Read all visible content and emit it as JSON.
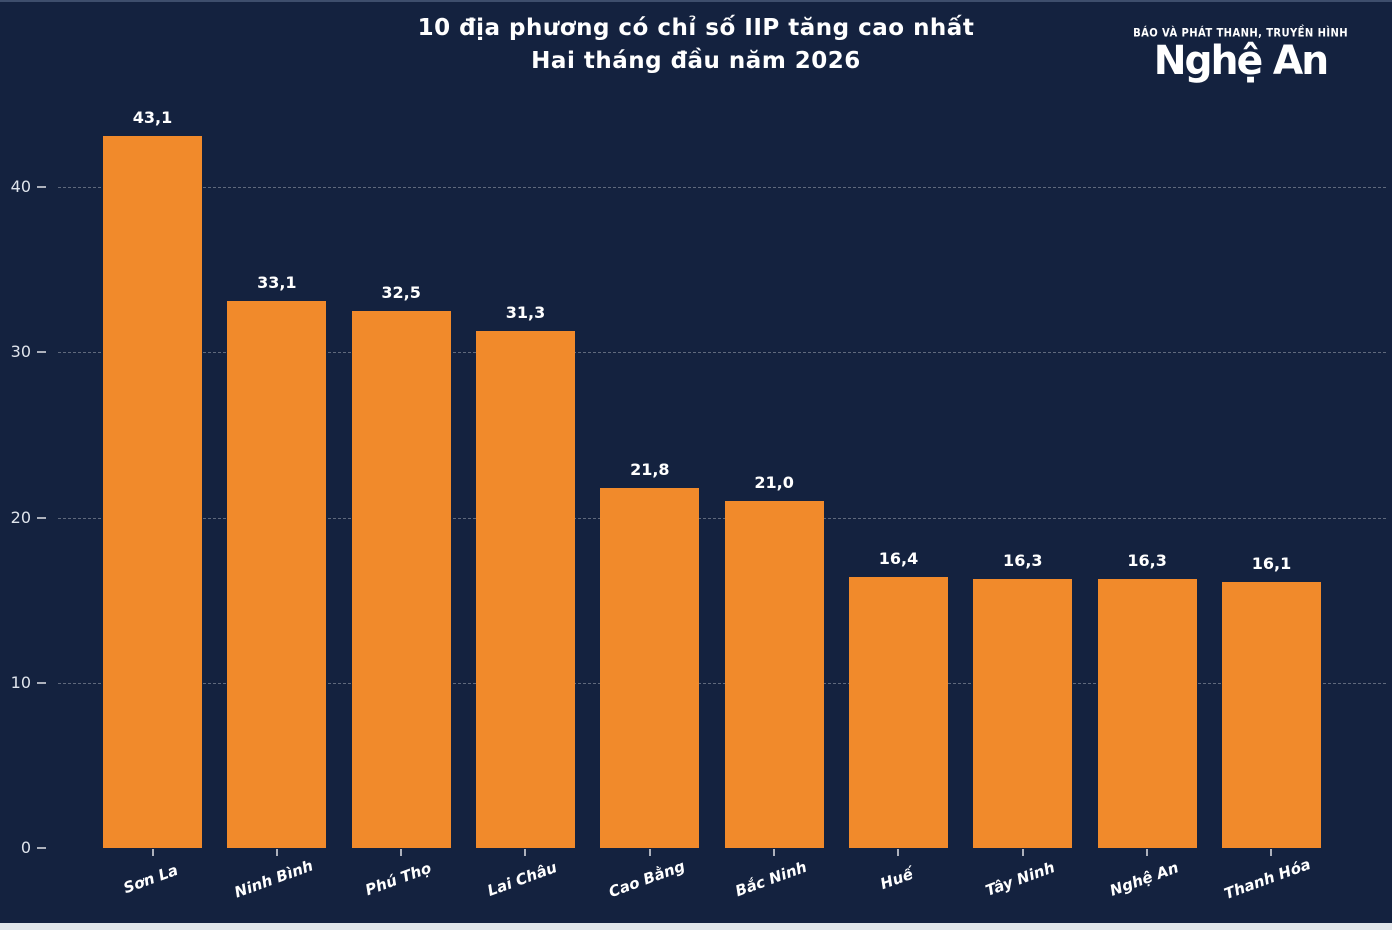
{
  "page": {
    "background_color": "#14223f",
    "bar_color": "#f18a2b",
    "text_color": "#ffffff",
    "bottom_strip_color": "#e2e6ea"
  },
  "header": {
    "title_line1": "10 địa phương có chỉ số IIP tăng cao nhất",
    "title_line2": "Hai tháng đầu năm 2026"
  },
  "logo": {
    "tagline": "BÁO VÀ PHÁT THANH, TRUYỀN HÌNH",
    "name": "Nghệ An"
  },
  "chart_data": {
    "type": "bar",
    "title": "10 địa phương có chỉ số IIP tăng cao nhất",
    "subtitle": "Hai tháng đầu năm 2026",
    "categories": [
      "Sơn La",
      "Ninh Bình",
      "Phú Thọ",
      "Lai Châu",
      "Cao Bằng",
      "Bắc Ninh",
      "Huế",
      "Tây Ninh",
      "Nghệ An",
      "Thanh Hóa"
    ],
    "values": [
      43.1,
      33.1,
      32.5,
      31.3,
      21.8,
      21.0,
      16.4,
      16.3,
      16.3,
      16.1
    ],
    "value_labels": [
      "43,1",
      "33,1",
      "32,5",
      "31,3",
      "21,8",
      "21,0",
      "16,4",
      "16,3",
      "16,3",
      "16,1"
    ],
    "xlabel": "",
    "ylabel": "",
    "yticks": [
      0,
      10,
      20,
      30,
      40
    ],
    "ylim": [
      0,
      45
    ],
    "grid": "horizontal-dashed",
    "legend": "none",
    "bar_color": "#f18a2b",
    "decimal_separator": ","
  }
}
